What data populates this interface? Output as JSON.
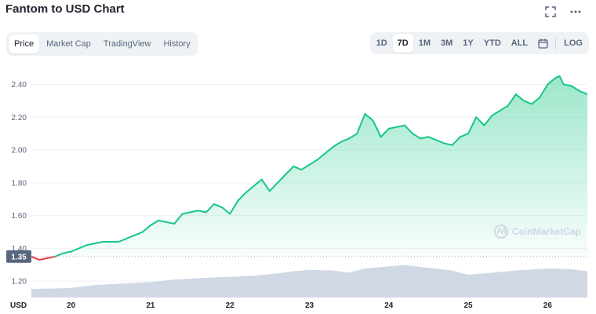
{
  "header": {
    "title": "Fantom to USD Chart",
    "fullscreen_icon": "fullscreen-icon",
    "more_icon": "more-icon"
  },
  "tabs": [
    {
      "label": "Price",
      "active": true
    },
    {
      "label": "Market Cap",
      "active": false
    },
    {
      "label": "TradingView",
      "active": false
    },
    {
      "label": "History",
      "active": false
    }
  ],
  "ranges": {
    "items": [
      "1D",
      "7D",
      "1M",
      "3M",
      "1Y",
      "YTD",
      "ALL"
    ],
    "selected": "7D",
    "calendar_icon": "calendar-icon",
    "log_label": "LOG"
  },
  "chart_data": {
    "type": "area",
    "currency_label": "USD",
    "watermark": "CoinMarketCap",
    "current_price_label": "1.35",
    "reference_price": 1.35,
    "ylim": [
      1.1,
      2.46
    ],
    "y_ticks": [
      1.2,
      1.4,
      1.6,
      1.8,
      2.0,
      2.2,
      2.4
    ],
    "y_tick_labels": [
      "1.20",
      "1.40",
      "1.60",
      "1.80",
      "2.00",
      "2.20",
      "2.40"
    ],
    "xlim": [
      19.5,
      26.5
    ],
    "x_ticks": [
      20,
      21,
      22,
      23,
      24,
      25,
      26
    ],
    "x_tick_labels": [
      "20",
      "21",
      "22",
      "23",
      "24",
      "25",
      "26"
    ],
    "colors": {
      "up": "#16c784",
      "down": "#ea3943",
      "volume": "#cfd6e4",
      "grid": "#eff2f5"
    },
    "price_series": {
      "name": "Price",
      "x": [
        19.5,
        19.6,
        19.7,
        19.8,
        19.9,
        20.0,
        20.1,
        20.2,
        20.3,
        20.4,
        20.5,
        20.6,
        20.7,
        20.8,
        20.9,
        21.0,
        21.1,
        21.2,
        21.3,
        21.4,
        21.5,
        21.6,
        21.7,
        21.8,
        21.9,
        22.0,
        22.1,
        22.2,
        22.3,
        22.4,
        22.5,
        22.6,
        22.7,
        22.8,
        22.9,
        23.0,
        23.1,
        23.2,
        23.3,
        23.4,
        23.5,
        23.6,
        23.7,
        23.75,
        23.8,
        23.9,
        24.0,
        24.1,
        24.2,
        24.3,
        24.4,
        24.5,
        24.6,
        24.7,
        24.8,
        24.9,
        25.0,
        25.1,
        25.2,
        25.3,
        25.4,
        25.5,
        25.6,
        25.7,
        25.8,
        25.9,
        26.0,
        26.1,
        26.15,
        26.2,
        26.3,
        26.4,
        26.5
      ],
      "y": [
        1.35,
        1.33,
        1.34,
        1.35,
        1.37,
        1.38,
        1.4,
        1.42,
        1.43,
        1.44,
        1.44,
        1.44,
        1.46,
        1.48,
        1.5,
        1.54,
        1.57,
        1.56,
        1.55,
        1.61,
        1.62,
        1.63,
        1.62,
        1.67,
        1.65,
        1.61,
        1.69,
        1.74,
        1.78,
        1.82,
        1.75,
        1.8,
        1.85,
        1.9,
        1.88,
        1.91,
        1.94,
        1.98,
        2.02,
        2.05,
        2.07,
        2.1,
        2.22,
        2.2,
        2.18,
        2.08,
        2.13,
        2.14,
        2.15,
        2.1,
        2.07,
        2.08,
        2.06,
        2.04,
        2.03,
        2.08,
        2.1,
        2.2,
        2.15,
        2.21,
        2.24,
        2.27,
        2.34,
        2.3,
        2.28,
        2.32,
        2.4,
        2.44,
        2.45,
        2.4,
        2.39,
        2.36,
        2.34
      ]
    },
    "volume_series": {
      "name": "Volume",
      "x": [
        19.5,
        19.8,
        20.0,
        20.3,
        20.6,
        21.0,
        21.3,
        21.6,
        22.0,
        22.3,
        22.6,
        22.8,
        23.0,
        23.3,
        23.5,
        23.7,
        24.0,
        24.2,
        24.5,
        24.8,
        25.0,
        25.3,
        25.6,
        26.0,
        26.3,
        26.5
      ],
      "volume_fraction": [
        0.25,
        0.26,
        0.28,
        0.36,
        0.4,
        0.45,
        0.52,
        0.56,
        0.6,
        0.63,
        0.7,
        0.76,
        0.8,
        0.78,
        0.72,
        0.84,
        0.9,
        0.94,
        0.86,
        0.78,
        0.66,
        0.72,
        0.78,
        0.84,
        0.82,
        0.76
      ]
    }
  }
}
